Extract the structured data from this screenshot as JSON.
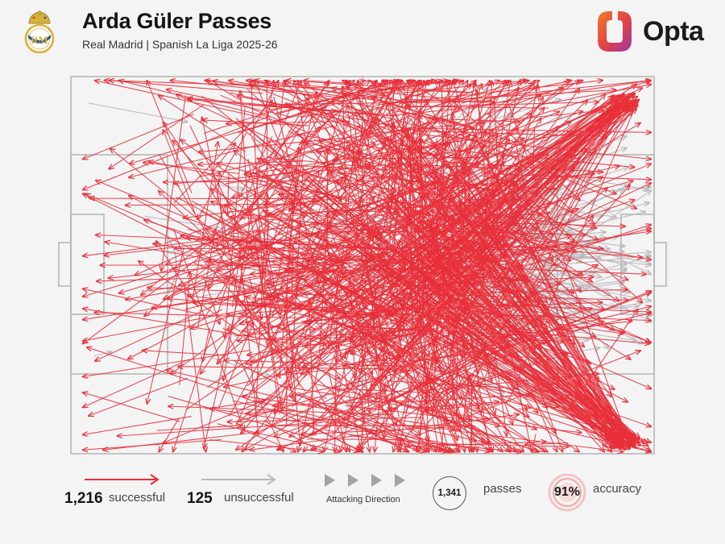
{
  "header": {
    "title": "Arda Güler Passes",
    "subtitle": "Real Madrid | Spanish La Liga 2025-26",
    "brand": "Opta",
    "crest_icon": "real-madrid-crest-icon",
    "brand_icon": "opta-logo-icon"
  },
  "colors": {
    "successful": "#e8303a",
    "unsuccessful": "#b9b9bc",
    "pitch_lines": "#b7b7b7",
    "background": "#f4f4f5",
    "brand_gradient": [
      "#e94a33",
      "#a0399e"
    ]
  },
  "legend": {
    "successful_count": "1,216",
    "successful_label": "successful",
    "unsuccessful_count": "125",
    "unsuccessful_label": "unsuccessful",
    "attacking_direction_label": "Attacking Direction",
    "attacking_direction_icon": "right-triangles-icon",
    "total_passes": "1,341",
    "passes_label": "passes",
    "accuracy": "91%",
    "accuracy_label": "accuracy"
  },
  "chart_data": {
    "type": "pass-map",
    "direction": "left-to-right",
    "pitch": {
      "length": 100,
      "width": 100
    },
    "series": [
      {
        "name": "successful",
        "count": 1216
      },
      {
        "name": "unsuccessful",
        "count": 125
      }
    ],
    "totals": {
      "passes": 1341,
      "accuracy_pct": 91
    },
    "sample_passes": {
      "successful": [
        [
          48,
          52,
          97,
          2
        ],
        [
          52,
          45,
          99,
          98
        ],
        [
          30,
          20,
          15,
          5
        ],
        [
          60,
          30,
          98,
          3
        ],
        [
          55,
          70,
          97,
          97
        ],
        [
          40,
          50,
          5,
          50
        ],
        [
          70,
          20,
          98,
          60
        ],
        [
          62,
          80,
          99,
          97
        ],
        [
          20,
          80,
          3,
          90
        ],
        [
          45,
          10,
          25,
          45
        ],
        [
          58,
          60,
          80,
          40
        ],
        [
          35,
          70,
          60,
          95
        ],
        [
          66,
          15,
          97,
          35
        ],
        [
          50,
          90,
          30,
          65
        ],
        [
          75,
          55,
          96,
          75
        ],
        [
          38,
          25,
          12,
          58
        ],
        [
          57,
          22,
          86,
          15
        ],
        [
          44,
          64,
          70,
          88
        ],
        [
          63,
          43,
          98,
          48
        ],
        [
          28,
          48,
          48,
          18
        ]
      ],
      "unsuccessful": [
        [
          60,
          70,
          98,
          60
        ],
        [
          70,
          40,
          95,
          45
        ],
        [
          3,
          7,
          20,
          12
        ],
        [
          80,
          25,
          99,
          30
        ],
        [
          65,
          55,
          90,
          52
        ],
        [
          75,
          65,
          97,
          70
        ],
        [
          58,
          18,
          84,
          6
        ],
        [
          4,
          74,
          7,
          73
        ]
      ]
    }
  }
}
